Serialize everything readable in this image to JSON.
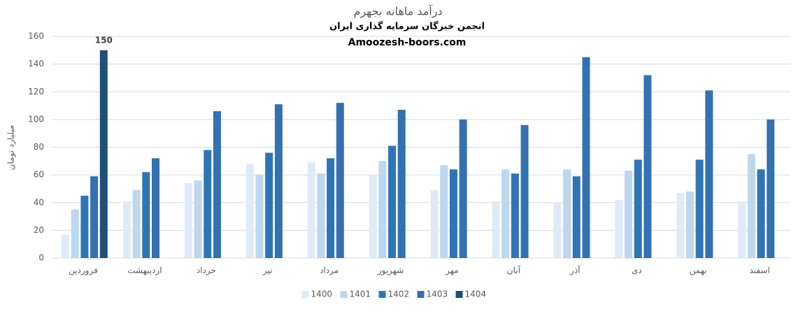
{
  "chart_data": {
    "type": "bar",
    "title": "درآمد ماهانه بجهرم",
    "subtitle": "انجمن خبرگان سرمایه گذاری ایران",
    "website": "Amoozesh-boors.com",
    "y_label": "میلیارد تومان",
    "categories": [
      "فروردین",
      "اردیبهشت",
      "خرداد",
      "تیر",
      "مرداد",
      "شهریور",
      "مهر",
      "آبان",
      "آذر",
      "دی",
      "بهمن",
      "اسفند"
    ],
    "series": [
      {
        "name": "1400",
        "color": "#deebf7",
        "values": [
          17,
          41,
          54,
          68,
          69,
          60,
          49,
          41,
          40,
          42,
          47,
          41
        ]
      },
      {
        "name": "1401",
        "color": "#bdd7ee",
        "values": [
          35,
          49,
          56,
          60,
          61,
          70,
          67,
          64,
          64,
          63,
          48,
          75
        ]
      },
      {
        "name": "1402",
        "color": "#2e75b6",
        "values": [
          45,
          62,
          78,
          76,
          72,
          81,
          64,
          61,
          59,
          71,
          71,
          64
        ]
      },
      {
        "name": "1403",
        "color": "#3371b0",
        "values": [
          59,
          72,
          106,
          111,
          112,
          107,
          100,
          96,
          145,
          132,
          121,
          100
        ]
      },
      {
        "name": "1404",
        "color": "#1f4e79",
        "show_value_labels": true,
        "values": [
          150,
          null,
          null,
          null,
          null,
          null,
          null,
          null,
          null,
          null,
          null,
          null
        ]
      }
    ],
    "ylim": [
      0,
      160
    ],
    "yticks": [
      0,
      20,
      40,
      60,
      80,
      100,
      120,
      140,
      160
    ],
    "grid": true,
    "legend": "bottom"
  }
}
